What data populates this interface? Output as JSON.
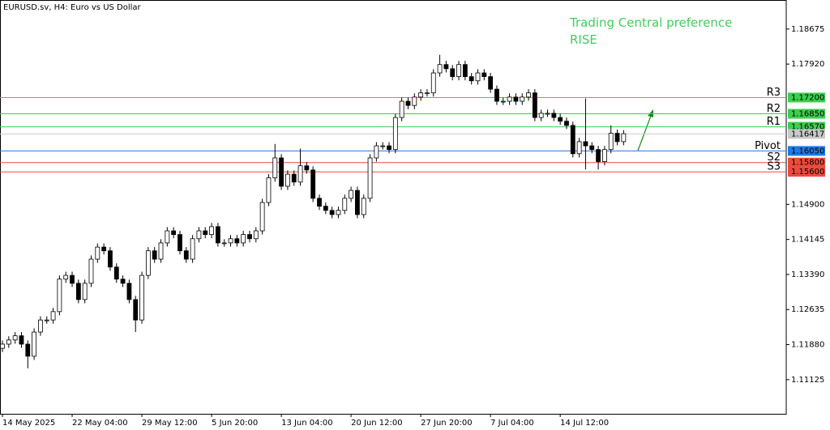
{
  "chart_data": {
    "type": "candlestick",
    "title": "EURUSD.sv, H4:  Euro vs US Dollar",
    "annotation": [
      "Trading Central preference",
      "RISE"
    ],
    "categories": [
      "14 May 2025",
      null,
      null,
      null,
      null,
      null,
      null,
      null,
      null,
      null,
      null,
      "22 May 04:00",
      null,
      null,
      null,
      null,
      null,
      null,
      null,
      null,
      null,
      null,
      "29 May 12:00",
      null,
      null,
      null,
      null,
      null,
      null,
      null,
      null,
      null,
      null,
      "5 Jun 20:00",
      null,
      null,
      null,
      null,
      null,
      null,
      null,
      null,
      null,
      null,
      "13 Jun 04:00",
      null,
      null,
      null,
      null,
      null,
      null,
      null,
      null,
      null,
      null,
      "20 Jun 12:00",
      null,
      null,
      null,
      null,
      null,
      null,
      null,
      null,
      null,
      null,
      "27 Jun 20:00",
      null,
      null,
      null,
      null,
      null,
      null,
      null,
      null,
      null,
      null,
      "7 Jul 04:00",
      null,
      null,
      null,
      null,
      null,
      null,
      null,
      null,
      null,
      null,
      "14 Jul 12:00",
      null,
      null,
      null,
      null,
      null,
      null,
      null,
      null,
      null,
      null
    ],
    "open": [
      1.118,
      1.1189,
      1.1198,
      1.1207,
      1.1189,
      1.1163,
      1.1215,
      1.1241,
      1.1241,
      1.1259,
      1.1329,
      1.1337,
      1.132,
      1.1285,
      1.132,
      1.1372,
      1.1398,
      1.139,
      1.1355,
      1.1329,
      1.132,
      1.1285,
      1.1241,
      1.1337,
      1.139,
      1.1372,
      1.1407,
      1.1433,
      1.1425,
      1.139,
      1.1372,
      1.1416,
      1.1433,
      1.1425,
      1.1442,
      1.1407,
      1.1407,
      1.1416,
      1.1407,
      1.1425,
      1.1416,
      1.1433,
      1.1494,
      1.1547,
      1.159,
      1.1529,
      1.1555,
      1.1538,
      1.1573,
      1.1564,
      1.1503,
      1.1486,
      1.1477,
      1.1468,
      1.1477,
      1.1503,
      1.152,
      1.1468,
      1.1503,
      1.159,
      1.1616,
      1.1616,
      1.1608,
      1.1677,
      1.1712,
      1.1703,
      1.1721,
      1.173,
      1.173,
      1.1773,
      1.1791,
      1.1782,
      1.1765,
      1.1791,
      1.1765,
      1.1756,
      1.1773,
      1.1765,
      1.1738,
      1.1712,
      1.1712,
      1.1721,
      1.1712,
      1.1721,
      1.173,
      1.1677,
      1.1686,
      1.1686,
      1.1677,
      1.1669,
      1.166,
      1.1599,
      1.1625,
      1.1616,
      1.1608,
      1.1582,
      1.1608,
      1.1643,
      1.1625
    ],
    "high": [
      1.1197,
      1.1206,
      1.1215,
      1.1215,
      1.1197,
      1.1223,
      1.1249,
      1.1249,
      1.1267,
      1.1337,
      1.1345,
      1.1345,
      1.1328,
      1.1328,
      1.138,
      1.1406,
      1.1406,
      1.1398,
      1.1363,
      1.1337,
      1.1328,
      1.1293,
      1.1345,
      1.1398,
      1.1398,
      1.1415,
      1.1441,
      1.1441,
      1.1433,
      1.1398,
      1.1424,
      1.1441,
      1.1441,
      1.145,
      1.145,
      1.1415,
      1.1424,
      1.1424,
      1.1433,
      1.1433,
      1.1441,
      1.1502,
      1.1555,
      1.162,
      1.1598,
      1.1563,
      1.1563,
      1.161,
      1.1581,
      1.1572,
      1.1511,
      1.1494,
      1.1485,
      1.1485,
      1.1511,
      1.1528,
      1.1528,
      1.1511,
      1.1598,
      1.1624,
      1.1624,
      1.1624,
      1.1685,
      1.172,
      1.172,
      1.1729,
      1.1738,
      1.1738,
      1.1781,
      1.1812,
      1.1799,
      1.179,
      1.1799,
      1.1799,
      1.1773,
      1.1781,
      1.1781,
      1.1773,
      1.1746,
      1.172,
      1.1729,
      1.1729,
      1.1729,
      1.1738,
      1.1738,
      1.1694,
      1.1694,
      1.1694,
      1.1685,
      1.1677,
      1.1668,
      1.1633,
      1.1718,
      1.1624,
      1.1616,
      1.1616,
      1.166,
      1.1651,
      1.165
    ],
    "low": [
      1.1172,
      1.1181,
      1.119,
      1.1181,
      1.1137,
      1.1155,
      1.1207,
      1.1233,
      1.1233,
      1.1251,
      1.1321,
      1.1312,
      1.1277,
      1.1277,
      1.1312,
      1.1364,
      1.1382,
      1.1347,
      1.1321,
      1.1312,
      1.1277,
      1.1215,
      1.1233,
      1.1329,
      1.1364,
      1.1364,
      1.1399,
      1.1417,
      1.1382,
      1.1364,
      1.1364,
      1.1408,
      1.1417,
      1.1417,
      1.1399,
      1.1399,
      1.1399,
      1.1399,
      1.1399,
      1.1408,
      1.1408,
      1.1425,
      1.1486,
      1.1539,
      1.1521,
      1.1521,
      1.153,
      1.153,
      1.1556,
      1.1495,
      1.1478,
      1.1469,
      1.146,
      1.146,
      1.1469,
      1.1495,
      1.146,
      1.146,
      1.1495,
      1.1582,
      1.1608,
      1.16,
      1.16,
      1.1669,
      1.1695,
      1.1695,
      1.1713,
      1.1722,
      1.1722,
      1.1765,
      1.1774,
      1.1757,
      1.1757,
      1.1757,
      1.1748,
      1.1748,
      1.1757,
      1.173,
      1.1704,
      1.1704,
      1.1704,
      1.1704,
      1.1704,
      1.1713,
      1.1669,
      1.1669,
      1.1678,
      1.1669,
      1.1661,
      1.1652,
      1.1591,
      1.1591,
      1.1565,
      1.16,
      1.1565,
      1.1574,
      1.16,
      1.1617,
      1.1617
    ],
    "close": [
      1.1189,
      1.1198,
      1.1207,
      1.1189,
      1.1163,
      1.1215,
      1.1241,
      1.1241,
      1.1259,
      1.1329,
      1.1337,
      1.132,
      1.1285,
      1.132,
      1.1372,
      1.1398,
      1.139,
      1.1355,
      1.1329,
      1.132,
      1.1285,
      1.1241,
      1.1337,
      1.139,
      1.1372,
      1.1407,
      1.1433,
      1.1425,
      1.139,
      1.1372,
      1.1416,
      1.1433,
      1.1425,
      1.1442,
      1.1407,
      1.1407,
      1.1416,
      1.1407,
      1.1425,
      1.1416,
      1.1433,
      1.1494,
      1.1547,
      1.159,
      1.1529,
      1.1555,
      1.1538,
      1.1573,
      1.1564,
      1.1503,
      1.1486,
      1.1477,
      1.1468,
      1.1477,
      1.1503,
      1.152,
      1.1468,
      1.1503,
      1.159,
      1.1616,
      1.1616,
      1.1608,
      1.1677,
      1.1712,
      1.1703,
      1.1721,
      1.173,
      1.173,
      1.1773,
      1.1791,
      1.1782,
      1.1765,
      1.1791,
      1.1765,
      1.1756,
      1.1773,
      1.1765,
      1.1738,
      1.1712,
      1.1712,
      1.1721,
      1.1712,
      1.1721,
      1.173,
      1.1677,
      1.1686,
      1.1686,
      1.1677,
      1.1669,
      1.166,
      1.1599,
      1.1625,
      1.1616,
      1.1608,
      1.1582,
      1.1608,
      1.1643,
      1.1625,
      1.1642
    ],
    "ylim": [
      1.1039,
      1.193
    ],
    "yticks": [
      1.18675,
      {
        "value": 1.1792,
        "label": "1.17920"
      },
      {
        "value": 1.149,
        "label": "1.14900"
      },
      1.14145,
      {
        "value": 1.1339,
        "label": "1.13390"
      },
      1.12635,
      {
        "value": 1.1188,
        "label": "1.11880"
      },
      1.11125
    ],
    "levels": [
      {
        "name": "R3",
        "value": 1.172,
        "value_label": "1.17200",
        "color": "#3ccf4e"
      },
      {
        "name": "R2",
        "value": 1.1685,
        "value_label": "1.16850",
        "color": "#3ccf4e"
      },
      {
        "name": "R1",
        "value": 1.1657,
        "value_label": "1.16570",
        "color": "#3ccf4e"
      },
      {
        "name": "Pivot",
        "value": 1.1605,
        "value_label": "1.16050",
        "color": "#1f7ae6"
      },
      {
        "name": "S2",
        "value": 1.158,
        "value_label": "1.15800",
        "color": "#ec4b3c"
      },
      {
        "name": "S3",
        "value": 1.156,
        "value_label": "1.15600",
        "color": "#ec4b3c"
      }
    ],
    "current_price": {
      "value": 1.16417,
      "label": "1.16417"
    },
    "candle_up_color": "#ffffff",
    "candle_down_color": "#000000"
  }
}
